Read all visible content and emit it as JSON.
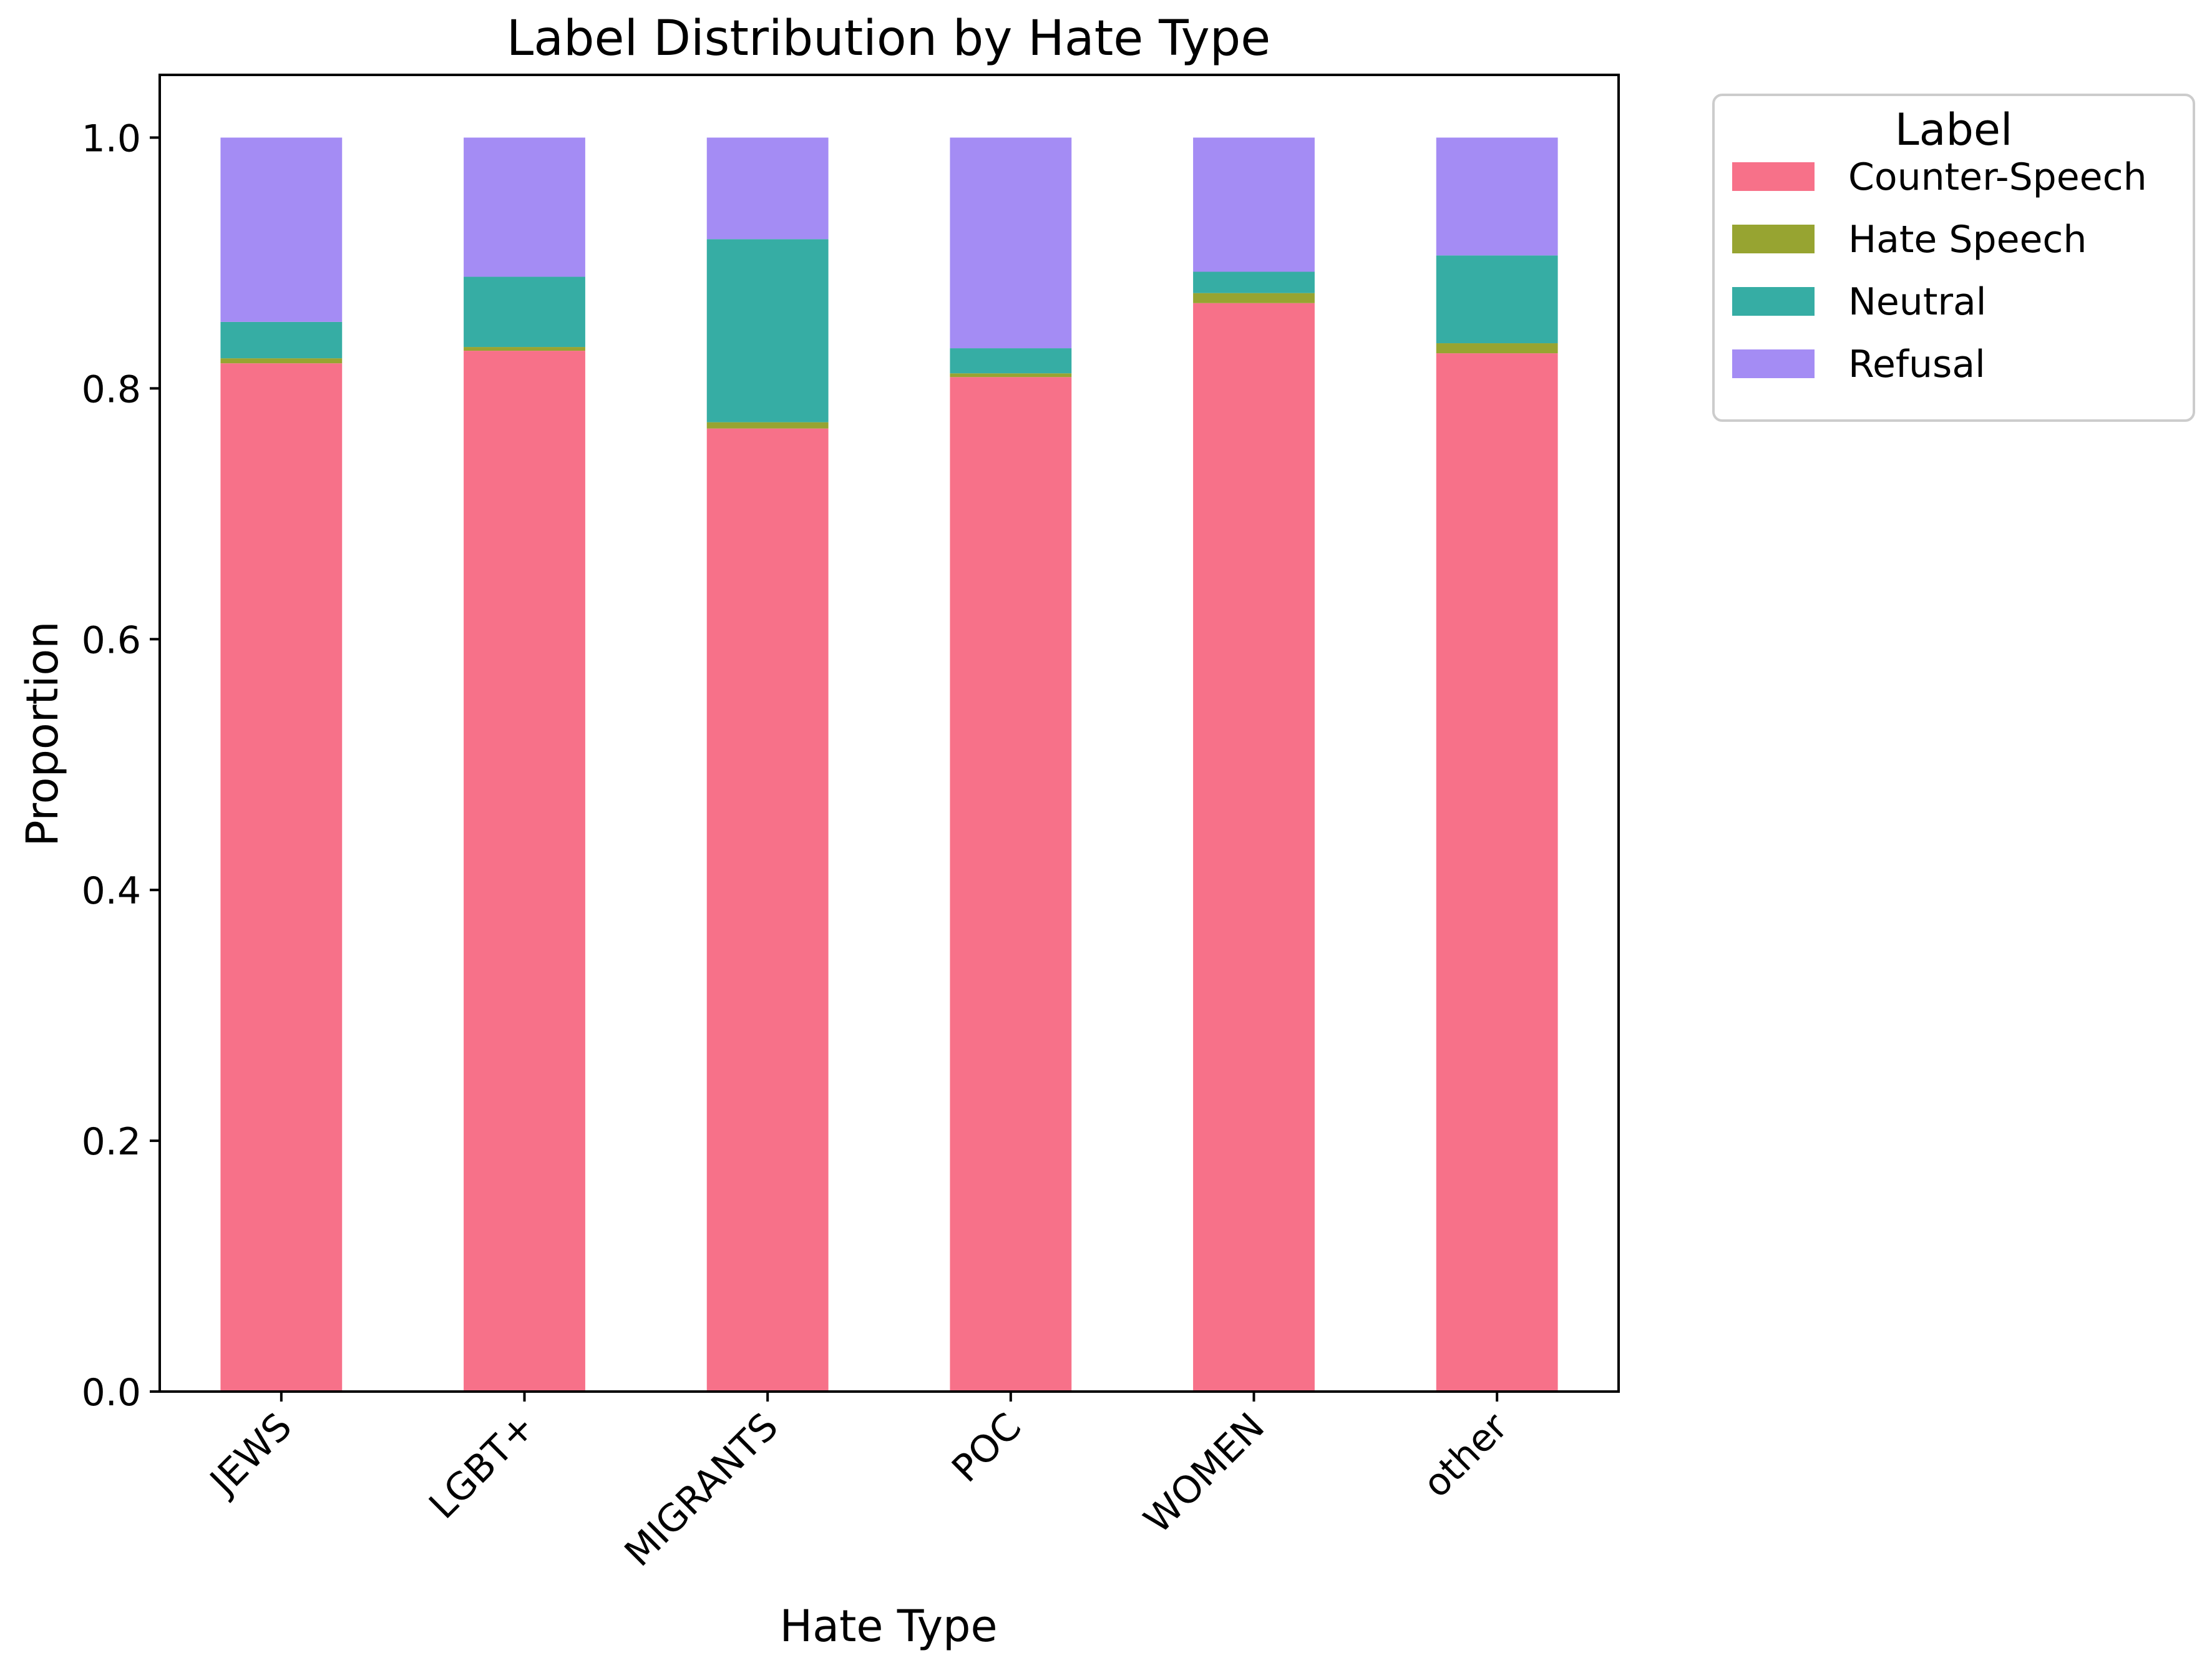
{
  "chart_data": {
    "type": "bar",
    "stacked": true,
    "title": "Label Distribution by Hate Type",
    "xlabel": "Hate Type",
    "ylabel": "Proportion",
    "ylim": [
      0,
      1.05
    ],
    "yticks": [
      "0.0",
      "0.2",
      "0.4",
      "0.6",
      "0.8",
      "1.0"
    ],
    "categories": [
      "JEWS",
      "LGBT+",
      "MIGRANTS",
      "POC",
      "WOMEN",
      "other"
    ],
    "series": [
      {
        "name": "Counter-Speech",
        "color": "#f77189",
        "values": [
          0.82,
          0.83,
          0.768,
          0.809,
          0.868,
          0.828
        ]
      },
      {
        "name": "Hate Speech",
        "color": "#97a431",
        "values": [
          0.004,
          0.003,
          0.005,
          0.003,
          0.008,
          0.008
        ]
      },
      {
        "name": "Neutral",
        "color": "#36ada4",
        "values": [
          0.029,
          0.056,
          0.146,
          0.02,
          0.017,
          0.07
        ]
      },
      {
        "name": "Refusal",
        "color": "#a48cf4",
        "values": [
          0.147,
          0.111,
          0.081,
          0.168,
          0.107,
          0.094
        ]
      }
    ],
    "legend": {
      "title": "Label",
      "position": "outside-right"
    },
    "grid": false
  }
}
